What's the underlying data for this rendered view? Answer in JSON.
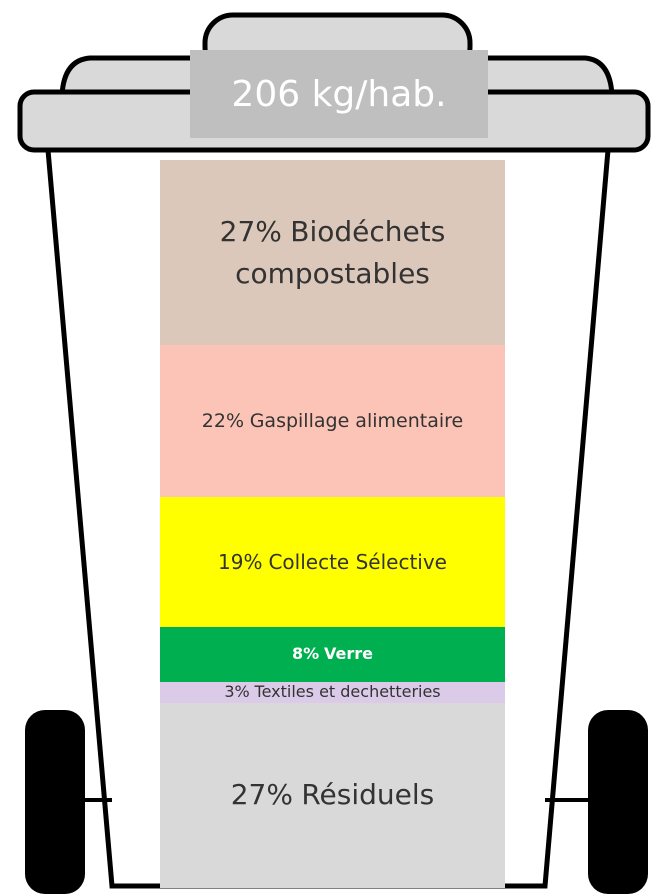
{
  "chart_data": {
    "type": "stacked-bar",
    "title": "206 kg/hab.",
    "series": [
      {
        "name": "Biodéchets compostables",
        "color": "#dcc8ba",
        "values": [
          27
        ],
        "value_labels": [
          "27%"
        ]
      },
      {
        "name": "Gaspillage alimentaire",
        "color": "#fcc4b6",
        "values": [
          22
        ],
        "value_labels": [
          "22%"
        ]
      },
      {
        "name": "Collecte Sélective",
        "color": "#ffff00",
        "values": [
          19
        ],
        "value_labels": [
          "19%"
        ]
      },
      {
        "name": "Verre",
        "color": "#00b050",
        "values": [
          8
        ],
        "value_labels": [
          "8%"
        ]
      },
      {
        "name": "Textiles et dechetteries",
        "color": "#dccbe8",
        "values": [
          3
        ],
        "value_labels": [
          "3%"
        ]
      },
      {
        "name": "Résiduels",
        "color": "#d9d9d9",
        "values": [
          27
        ],
        "value_labels": [
          "27%"
        ]
      }
    ]
  }
}
